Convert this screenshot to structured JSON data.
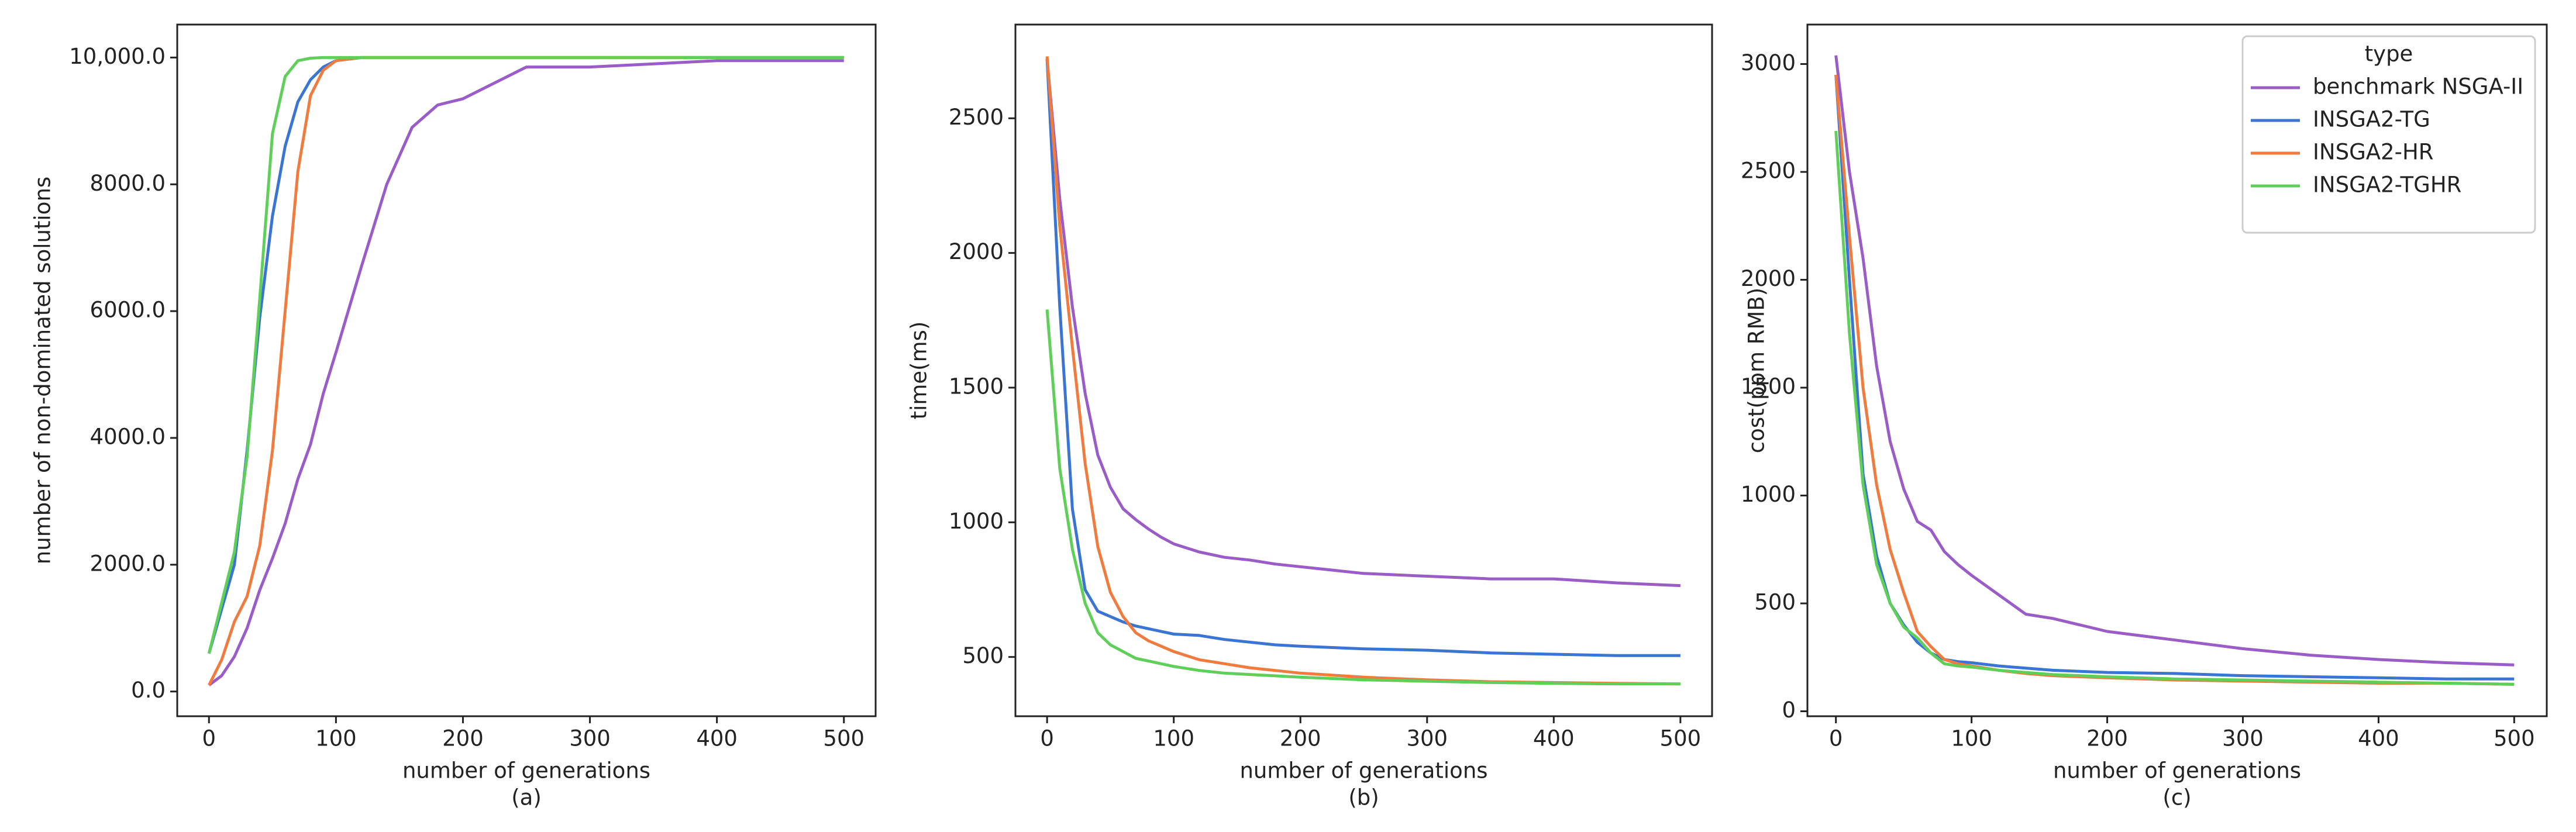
{
  "chart_data": [
    {
      "type": "line",
      "caption": "(a)",
      "xlabel": "number of generations",
      "ylabel": "number of non-dominated solutions",
      "x": [
        0,
        10,
        20,
        30,
        40,
        50,
        60,
        70,
        80,
        90,
        100,
        120,
        140,
        160,
        180,
        200,
        250,
        300,
        350,
        400,
        450,
        500
      ],
      "xlim": [
        -25,
        525
      ],
      "xticks": [
        0,
        100,
        200,
        300,
        400,
        500
      ],
      "ylim": [
        -390,
        10520
      ],
      "yticks": [
        {
          "value": 0,
          "label": "0.0"
        },
        {
          "value": 2000,
          "label": "2000.0"
        },
        {
          "value": 4000,
          "label": "4000.0"
        },
        {
          "value": 6000,
          "label": "6000.0"
        },
        {
          "value": 8000,
          "label": "8000.0"
        },
        {
          "value": 10000,
          "label": "10,000.0"
        }
      ],
      "series": [
        {
          "name": "benchmark NSGA-II",
          "color": "#9a5cc6",
          "values": [
            100,
            250,
            550,
            1000,
            1600,
            2100,
            2650,
            3350,
            3900,
            4700,
            5350,
            6700,
            8000,
            8900,
            9250,
            9350,
            9850,
            9850,
            9900,
            9950,
            9950,
            9950
          ]
        },
        {
          "name": "INSGA2-TG",
          "color": "#3a75d3",
          "values": [
            600,
            1300,
            2000,
            3800,
            5900,
            7500,
            8600,
            9300,
            9650,
            9850,
            9950,
            10000,
            10000,
            10000,
            10000,
            10000,
            10000,
            10000,
            10000,
            10000,
            10000,
            10000
          ]
        },
        {
          "name": "INSGA2-HR",
          "color": "#f07b3f",
          "values": [
            100,
            500,
            1100,
            1500,
            2300,
            3800,
            6000,
            8200,
            9400,
            9800,
            9950,
            10000,
            10000,
            10000,
            10000,
            10000,
            10000,
            10000,
            10000,
            10000,
            10000,
            10000
          ]
        },
        {
          "name": "INSGA2-TGHR",
          "color": "#5fcf5a",
          "values": [
            600,
            1400,
            2200,
            3700,
            6200,
            8800,
            9700,
            9950,
            9990,
            10000,
            10000,
            10000,
            10000,
            10000,
            10000,
            10000,
            10000,
            10000,
            10000,
            10000,
            10000,
            10000
          ]
        }
      ]
    },
    {
      "type": "line",
      "caption": "(b)",
      "xlabel": "number of generations",
      "ylabel": "time(ms)",
      "x": [
        0,
        10,
        20,
        30,
        40,
        50,
        60,
        70,
        80,
        90,
        100,
        120,
        140,
        160,
        180,
        200,
        250,
        300,
        350,
        400,
        450,
        500
      ],
      "xlim": [
        -25,
        525
      ],
      "xticks": [
        0,
        100,
        200,
        300,
        400,
        500
      ],
      "ylim": [
        280,
        2848
      ],
      "yticks": [
        500,
        1000,
        1500,
        2000,
        2500
      ],
      "series": [
        {
          "name": "benchmark NSGA-II",
          "color": "#9a5cc6",
          "values": [
            2720,
            2200,
            1800,
            1480,
            1250,
            1130,
            1050,
            1010,
            975,
            945,
            920,
            890,
            870,
            860,
            845,
            835,
            810,
            800,
            790,
            790,
            775,
            765
          ]
        },
        {
          "name": "INSGA2-TG",
          "color": "#3a75d3",
          "values": [
            2720,
            1800,
            1050,
            750,
            670,
            650,
            630,
            615,
            605,
            595,
            585,
            580,
            565,
            555,
            545,
            540,
            530,
            525,
            515,
            510,
            505,
            505
          ]
        },
        {
          "name": "INSGA2-HR",
          "color": "#f07b3f",
          "values": [
            2730,
            2100,
            1650,
            1220,
            910,
            740,
            650,
            590,
            560,
            540,
            520,
            490,
            475,
            460,
            450,
            440,
            425,
            415,
            408,
            405,
            402,
            400
          ]
        },
        {
          "name": "INSGA2-TGHR",
          "color": "#5fcf5a",
          "values": [
            1790,
            1200,
            900,
            700,
            590,
            545,
            520,
            495,
            485,
            475,
            465,
            450,
            440,
            435,
            430,
            425,
            415,
            410,
            405,
            402,
            400,
            400
          ]
        }
      ]
    },
    {
      "type": "line",
      "caption": "(c)",
      "xlabel": "number of generations",
      "ylabel": "cost(ppm RMB)",
      "x": [
        0,
        10,
        20,
        30,
        40,
        50,
        60,
        70,
        80,
        90,
        100,
        120,
        140,
        160,
        180,
        200,
        250,
        300,
        350,
        400,
        450,
        500
      ],
      "xlim": [
        -21,
        524
      ],
      "xticks": [
        0,
        100,
        200,
        300,
        400,
        500
      ],
      "ylim": [
        -23,
        3183
      ],
      "yticks": [
        0,
        500,
        1000,
        1500,
        2000,
        2500,
        3000
      ],
      "legend": {
        "title": "type",
        "loc": "upper right"
      },
      "series": [
        {
          "name": "benchmark NSGA-II",
          "color": "#9a5cc6",
          "values": [
            3040,
            2500,
            2100,
            1600,
            1250,
            1030,
            880,
            840,
            740,
            680,
            630,
            540,
            450,
            430,
            400,
            370,
            330,
            290,
            260,
            240,
            225,
            215
          ]
        },
        {
          "name": "INSGA2-TG",
          "color": "#3a75d3",
          "values": [
            2950,
            2000,
            1100,
            720,
            500,
            400,
            320,
            270,
            240,
            230,
            225,
            210,
            200,
            190,
            185,
            180,
            175,
            165,
            160,
            155,
            150,
            150
          ]
        },
        {
          "name": "INSGA2-HR",
          "color": "#f07b3f",
          "values": [
            2950,
            2200,
            1500,
            1050,
            750,
            550,
            370,
            300,
            240,
            220,
            210,
            190,
            175,
            165,
            160,
            155,
            145,
            140,
            135,
            130,
            130,
            125
          ]
        },
        {
          "name": "INSGA2-TGHR",
          "color": "#5fcf5a",
          "values": [
            2690,
            1750,
            1050,
            680,
            500,
            390,
            340,
            270,
            220,
            210,
            205,
            190,
            180,
            170,
            165,
            160,
            150,
            145,
            140,
            135,
            130,
            125
          ]
        }
      ]
    }
  ]
}
